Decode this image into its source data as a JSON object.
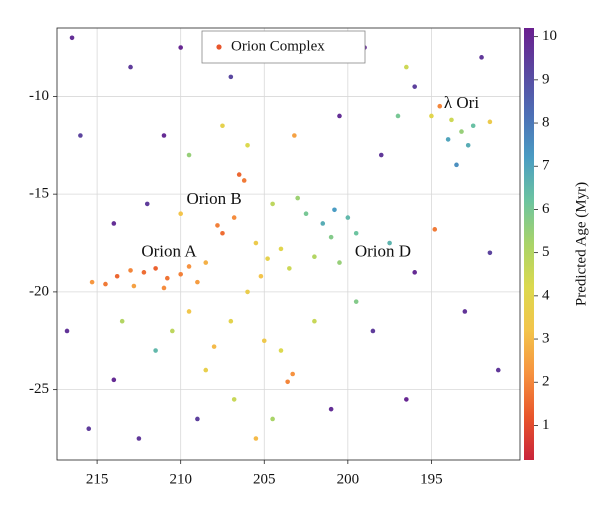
{
  "chart_data": {
    "type": "scatter",
    "xlim": [
      217.4,
      189.7
    ],
    "ylim": [
      -28.6,
      -6.5
    ],
    "xticks": [
      215,
      210,
      205,
      200,
      195
    ],
    "yticks": [
      -10,
      -15,
      -20,
      -25
    ],
    "grid": true,
    "legend": "upper center",
    "colormap": [
      "#c9243b",
      "#e8552b",
      "#f6923f",
      "#f3c44b",
      "#dcd94e",
      "#a9d468",
      "#6cc4a0",
      "#4a9cc3",
      "#4d6fb5",
      "#5a48a0",
      "#6a1f8f"
    ],
    "clim": [
      0.2,
      10.2
    ],
    "cticks": [
      1,
      2,
      3,
      4,
      5,
      6,
      7,
      8,
      9,
      10
    ],
    "colorbar_label": "Predicted Age (Myr)",
    "annotations": [
      {
        "text": "Orion A",
        "x": 210.7,
        "y": -18.0
      },
      {
        "text": "Orion B",
        "x": 208.0,
        "y": -15.3
      },
      {
        "text": "Orion D",
        "x": 197.9,
        "y": -18.0
      },
      {
        "text": "λ Ori",
        "x": 193.2,
        "y": -10.4
      }
    ],
    "series": [
      {
        "name": "Orion Complex",
        "color": "#e8552b",
        "x": [
          214.5,
          213.8,
          213.0,
          212.2,
          211.5,
          210.8,
          210.0,
          209.5,
          209.0,
          211.0,
          212.8,
          215.3,
          208.5,
          207.5,
          207.8,
          206.8,
          206.5,
          206.2,
          205.5,
          204.8,
          205.2,
          204.0,
          203.5,
          206.0,
          207.0,
          205.0,
          204.0,
          203.3,
          203.6,
          208.0,
          209.5,
          210.5,
          206.8,
          204.5,
          208.5,
          201.5,
          200.8,
          200.0,
          201.0,
          202.0,
          200.5,
          199.5,
          202.5,
          203.0,
          204.5,
          203.2,
          194.5,
          193.8,
          193.2,
          192.5,
          191.5,
          194.0,
          195.0,
          192.8,
          193.5,
          194.8,
          196.5,
          197.0,
          216.5,
          213.0,
          210.0,
          207.0,
          203.0,
          199.0,
          196.0,
          192.0,
          216.0,
          214.0,
          212.0,
          216.8,
          214.0,
          212.5,
          209.0,
          201.0,
          198.5,
          196.0,
          193.0,
          191.0,
          196.5,
          191.5,
          198.0,
          200.5,
          215.5,
          211.0,
          213.5,
          211.5,
          209.5,
          207.5,
          202.0,
          199.5,
          197.5,
          205.5,
          210.0,
          206.0
        ],
        "y": [
          -19.6,
          -19.2,
          -18.9,
          -19.0,
          -18.8,
          -19.3,
          -19.1,
          -18.7,
          -19.5,
          -19.8,
          -19.7,
          -19.5,
          -18.5,
          -17.0,
          -16.6,
          -16.2,
          -14.0,
          -14.3,
          -17.5,
          -18.3,
          -19.2,
          -17.8,
          -18.8,
          -20.0,
          -21.5,
          -22.5,
          -23.0,
          -24.2,
          -24.6,
          -22.8,
          -21.0,
          -22.0,
          -25.5,
          -26.5,
          -24.0,
          -16.5,
          -15.8,
          -16.2,
          -17.2,
          -18.2,
          -18.5,
          -17.0,
          -16.0,
          -15.2,
          -15.5,
          -12.0,
          -10.5,
          -11.2,
          -11.8,
          -11.5,
          -11.3,
          -12.2,
          -11.0,
          -12.5,
          -13.5,
          -16.8,
          -8.5,
          -11.0,
          -7.0,
          -8.5,
          -7.5,
          -9.0,
          -8.0,
          -7.5,
          -9.5,
          -8.0,
          -12.0,
          -16.5,
          -15.5,
          -22.0,
          -24.5,
          -27.5,
          -26.5,
          -26.0,
          -22.0,
          -19.0,
          -21.0,
          -24.0,
          -25.5,
          -18.0,
          -13.0,
          -11.0,
          -27.0,
          -12.0,
          -21.5,
          -23.0,
          -13.0,
          -11.5,
          -21.5,
          -20.5,
          -17.5,
          -27.5,
          -16.0,
          -12.5
        ],
        "age": [
          1.8,
          1.5,
          2.0,
          1.6,
          1.4,
          1.7,
          1.9,
          2.2,
          2.4,
          2.1,
          2.5,
          2.3,
          2.8,
          1.6,
          1.9,
          2.1,
          1.5,
          1.8,
          3.5,
          3.8,
          3.2,
          4.0,
          4.5,
          3.6,
          3.9,
          3.4,
          4.2,
          2.2,
          2.0,
          3.0,
          3.3,
          4.8,
          4.6,
          5.2,
          3.7,
          6.8,
          7.2,
          6.5,
          5.8,
          5.0,
          5.5,
          6.2,
          6.0,
          5.4,
          4.8,
          2.5,
          2.0,
          4.5,
          5.5,
          6.3,
          3.5,
          7.0,
          4.0,
          6.8,
          7.5,
          1.8,
          4.5,
          6.0,
          9.8,
          9.5,
          10.0,
          9.2,
          9.7,
          9.9,
          9.4,
          9.6,
          9.3,
          9.8,
          9.5,
          9.7,
          9.9,
          9.6,
          9.4,
          9.8,
          9.5,
          9.9,
          9.7,
          9.6,
          10.0,
          9.3,
          9.6,
          9.8,
          9.5,
          9.9,
          5.0,
          6.5,
          5.5,
          3.8,
          4.6,
          5.8,
          6.6,
          3.0,
          3.2,
          4.2
        ]
      }
    ]
  }
}
